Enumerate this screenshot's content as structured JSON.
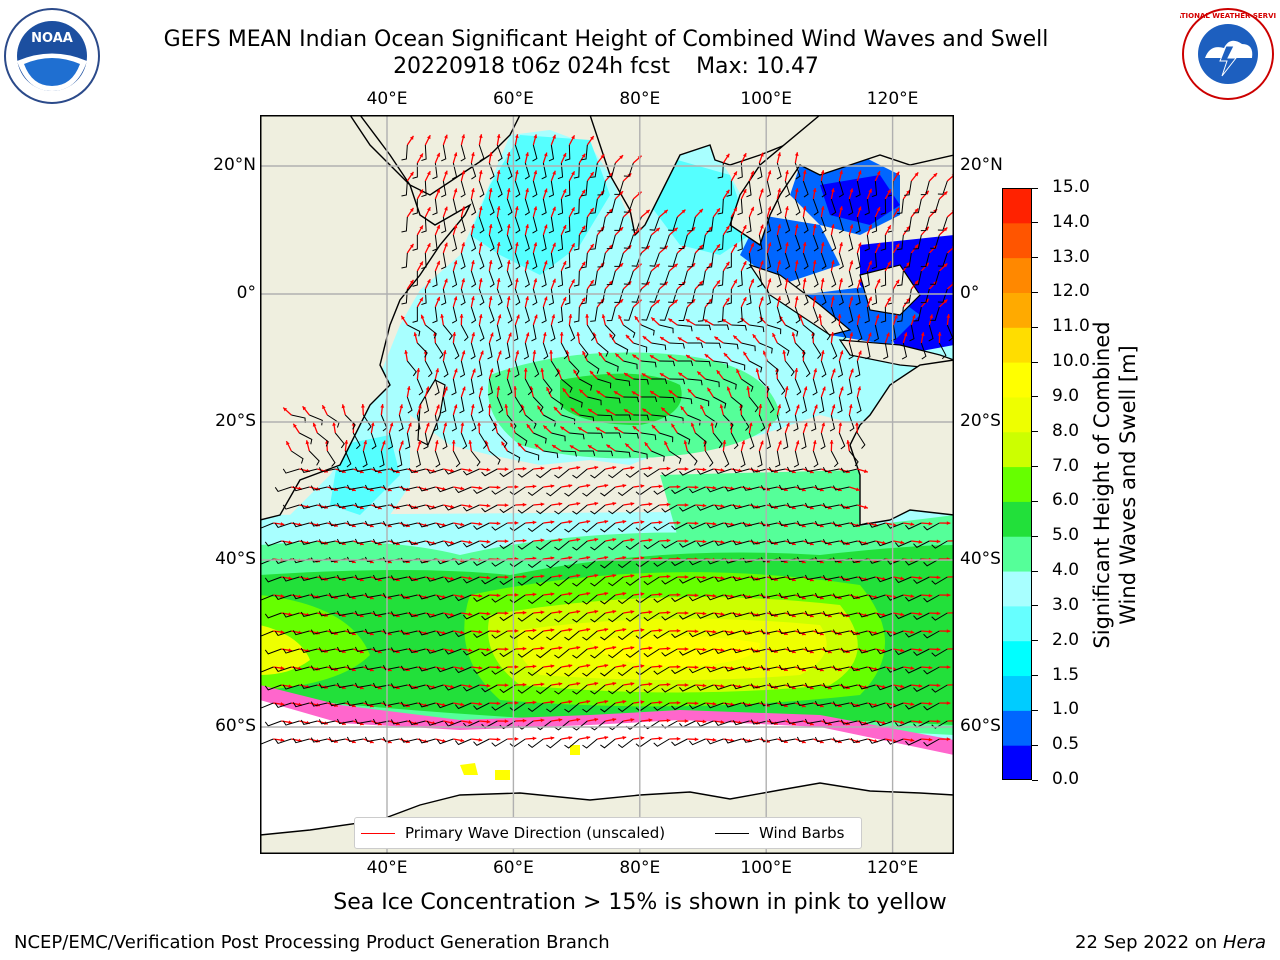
{
  "title": "GEFS MEAN Indian Ocean Significant Height of Combined Wind Waves and Swell",
  "subtitle_line": {
    "run": "20220918 t06z 024h fcst",
    "max": "Max: 10.47"
  },
  "logos": {
    "left": "NOAA",
    "right": "NATIONAL WEATHER SERVICE"
  },
  "axes": {
    "lon_ticks": [
      "40°E",
      "60°E",
      "80°E",
      "100°E",
      "120°E"
    ],
    "lat_ticks": [
      "20°N",
      "0°",
      "20°S",
      "40°S",
      "60°S"
    ],
    "lon_values": [
      40,
      60,
      80,
      100,
      120
    ],
    "lat_values": [
      20,
      0,
      -20,
      -40,
      -60
    ],
    "lon_range": [
      20,
      130
    ],
    "lat_range": [
      28,
      -87
    ],
    "grid": true
  },
  "colorbar": {
    "title_line1": "Significant Height of Combined",
    "title_line2": "Wind Waves and Swell [m]",
    "ticks": [
      "0.0",
      "0.5",
      "1.0",
      "1.5",
      "2.0",
      "3.0",
      "4.0",
      "5.0",
      "6.0",
      "7.0",
      "8.0",
      "9.0",
      "10.0",
      "11.0",
      "12.0",
      "13.0",
      "14.0",
      "15.0"
    ],
    "colors": [
      "#0000ff",
      "#0066ff",
      "#00ccff",
      "#00ffff",
      "#66ffff",
      "#a8ffff",
      "#55ff99",
      "#22e03a",
      "#66ff00",
      "#ccff00",
      "#eeff00",
      "#ffff00",
      "#ffdd00",
      "#ffaa00",
      "#ff8800",
      "#ff5500",
      "#ff2200",
      "#ff0000"
    ]
  },
  "legend": {
    "wave_direction": "Primary Wave Direction (unscaled)",
    "wind_barbs": "Wind Barbs",
    "wave_color": "#ff0000",
    "barb_color": "#000000"
  },
  "colors": {
    "land": "#efefdf",
    "ice": "#ffffff",
    "ice_edge": "#ff66cc"
  },
  "sea_ice_note": "Sea Ice Concentration > 15% is shown in pink to yellow",
  "footer": {
    "left": "NCEP/EMC/Verification Post Processing Product Generation Branch",
    "right_date": "22 Sep 2022 on ",
    "right_host": "Hera"
  }
}
